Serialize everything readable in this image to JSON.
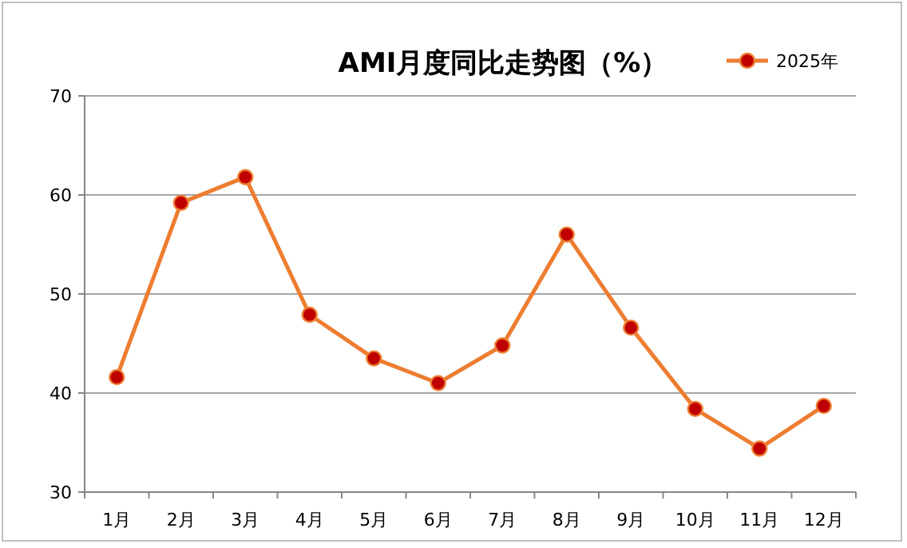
{
  "chart_data": {
    "type": "line",
    "title": "AMI月度同比走势图（%）",
    "categories": [
      "1月",
      "2月",
      "3月",
      "4月",
      "5月",
      "6月",
      "7月",
      "8月",
      "9月",
      "10月",
      "11月",
      "12月"
    ],
    "series": [
      {
        "name": "2025年",
        "color": "#ed7d31",
        "values": [
          41.6,
          59.2,
          61.8,
          47.9,
          43.5,
          41.0,
          44.8,
          56.0,
          46.6,
          38.4,
          34.4,
          38.7
        ]
      }
    ],
    "ylim": [
      30,
      70
    ],
    "yticks": [
      30,
      40,
      50,
      60,
      70
    ],
    "grid": "y",
    "legend": "top right",
    "marker": "circle",
    "line_style": "solid"
  }
}
